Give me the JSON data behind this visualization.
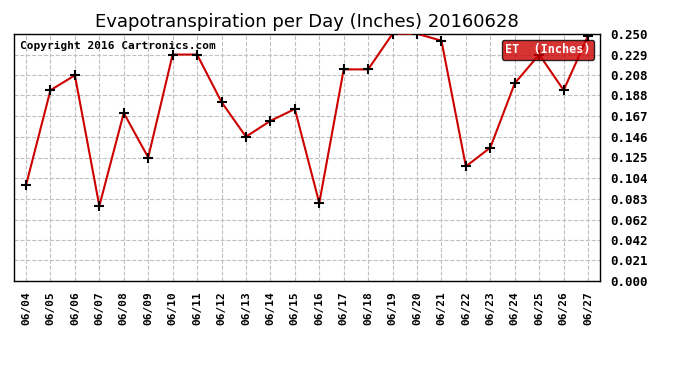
{
  "title": "Evapotranspiration per Day (Inches) 20160628",
  "copyright": "Copyright 2016 Cartronics.com",
  "legend_label": "ET  (Inches)",
  "dates": [
    "06/04",
    "06/05",
    "06/06",
    "06/07",
    "06/08",
    "06/09",
    "06/10",
    "06/11",
    "06/12",
    "06/13",
    "06/14",
    "06/15",
    "06/16",
    "06/17",
    "06/18",
    "06/19",
    "06/20",
    "06/21",
    "06/22",
    "06/23",
    "06/24",
    "06/25",
    "06/26",
    "06/27"
  ],
  "values": [
    0.097,
    0.193,
    0.208,
    0.076,
    0.17,
    0.125,
    0.229,
    0.229,
    0.181,
    0.146,
    0.162,
    0.174,
    0.079,
    0.214,
    0.214,
    0.25,
    0.25,
    0.243,
    0.116,
    0.135,
    0.2,
    0.229,
    0.193,
    0.248
  ],
  "yticks": [
    0.0,
    0.021,
    0.042,
    0.062,
    0.083,
    0.104,
    0.125,
    0.146,
    0.167,
    0.188,
    0.208,
    0.229,
    0.25
  ],
  "ylim": [
    0.0,
    0.25
  ],
  "line_color": "#cc0000",
  "marker": "+",
  "marker_color": "#000000",
  "grid_color": "#c0c0c0",
  "background_color": "#ffffff",
  "legend_bg": "#cc0000",
  "legend_text_color": "#ffffff",
  "title_fontsize": 13,
  "copyright_fontsize": 8,
  "tick_fontsize": 9,
  "xtick_fontsize": 8
}
